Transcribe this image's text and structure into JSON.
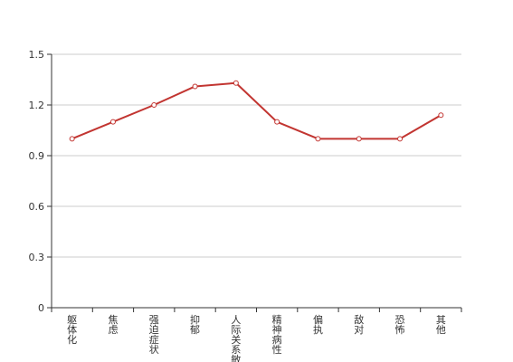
{
  "chart_data": {
    "type": "line",
    "categories": [
      "躯体化",
      "焦虑",
      "强迫症状",
      "抑郁",
      "人际关系敏感",
      "精神病性",
      "偏执",
      "敌对",
      "恐怖",
      "其他"
    ],
    "series": [
      {
        "values": [
          1.0,
          1.1,
          1.2,
          1.31,
          1.33,
          1.1,
          1.0,
          1.0,
          1.0,
          1.14
        ]
      }
    ],
    "ylim": [
      0,
      1.5
    ],
    "yticks": [
      0,
      0.3,
      0.6,
      0.9,
      1.2,
      1.5
    ],
    "ytick_labels": [
      "0",
      "0.3",
      "0.6",
      "0.9",
      "1.2",
      "1.5"
    ],
    "grid": true,
    "colors": {
      "line": "#c23531",
      "marker_fill": "#ffffff"
    }
  }
}
